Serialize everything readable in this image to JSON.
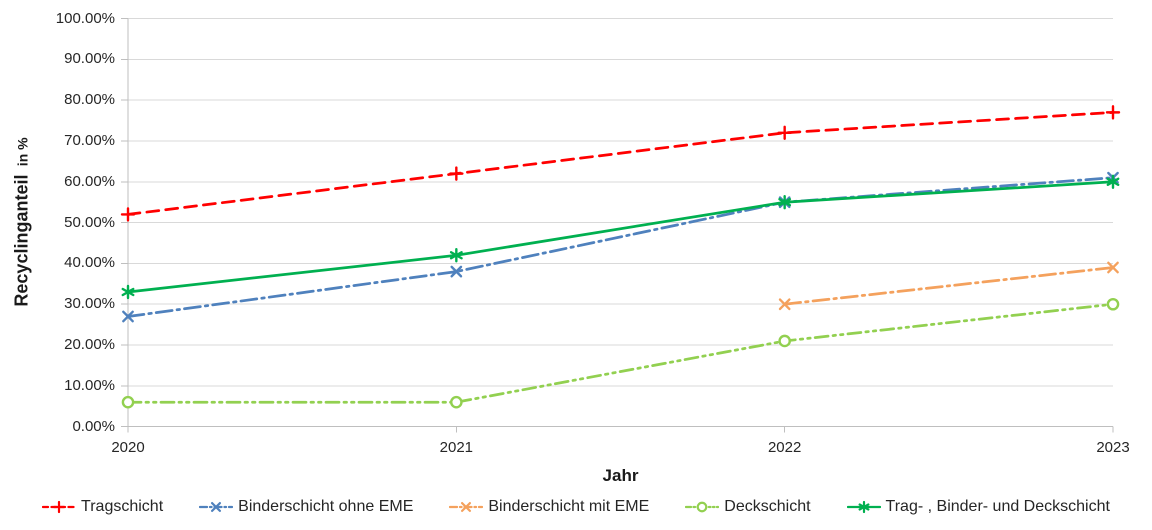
{
  "chart_data": {
    "type": "line",
    "title": "",
    "xlabel": "Jahr",
    "ylabel": "Recyclinganteil in %",
    "ylabel_main": "Recyclinganteil",
    "ylabel_unit": "in %",
    "categories": [
      "2020",
      "2021",
      "2022",
      "2023"
    ],
    "y_ticks": [
      "100.00%",
      "90.00%",
      "80.00%",
      "70.00%",
      "60.00%",
      "50.00%",
      "40.00%",
      "30.00%",
      "20.00%",
      "10.00%",
      "0.00%"
    ],
    "ylim": [
      0,
      100
    ],
    "grid": true,
    "legend_position": "bottom",
    "grid_color": "#D9D9D9",
    "axis_color": "#BFBFBF",
    "text_color": "#262626",
    "series": [
      {
        "name": "Tragschicht",
        "color": "#FF0000",
        "marker": "plus",
        "dash": "dashed",
        "values": [
          52,
          62,
          72,
          77
        ]
      },
      {
        "name": "Binderschicht ohne EME",
        "color": "#4F81BD",
        "marker": "x",
        "dash": "dashdot",
        "values": [
          27,
          38,
          55,
          61
        ]
      },
      {
        "name": "Binderschicht mit EME",
        "color": "#F4A15D",
        "marker": "x",
        "dash": "dashdot",
        "values": [
          null,
          null,
          30,
          39
        ]
      },
      {
        "name": "Deckschicht",
        "color": "#92D050",
        "marker": "circle",
        "dash": "dashdotdot",
        "values": [
          6,
          6,
          21,
          30
        ]
      },
      {
        "name": "Trag- , Binder- und Deckschicht",
        "color": "#00B050",
        "marker": "asterisk",
        "dash": "solid",
        "values": [
          33,
          42,
          55,
          60
        ]
      }
    ]
  }
}
